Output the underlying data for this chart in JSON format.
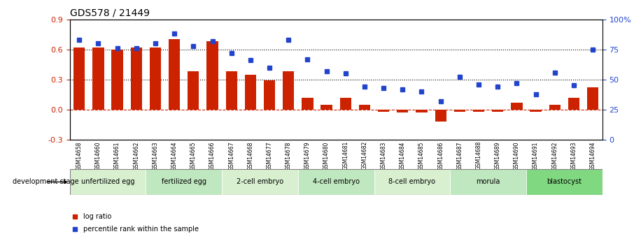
{
  "title": "GDS578 / 21449",
  "samples": [
    "GSM14658",
    "GSM14660",
    "GSM14661",
    "GSM14662",
    "GSM14663",
    "GSM14664",
    "GSM14665",
    "GSM14666",
    "GSM14667",
    "GSM14668",
    "GSM14677",
    "GSM14678",
    "GSM14679",
    "GSM14680",
    "GSM14681",
    "GSM14682",
    "GSM14683",
    "GSM14684",
    "GSM14685",
    "GSM14686",
    "GSM14687",
    "GSM14688",
    "GSM14689",
    "GSM14690",
    "GSM14691",
    "GSM14692",
    "GSM14693",
    "GSM14694"
  ],
  "log_ratio": [
    0.62,
    0.62,
    0.6,
    0.62,
    0.62,
    0.7,
    0.38,
    0.68,
    0.38,
    0.35,
    0.29,
    0.38,
    0.12,
    0.05,
    0.12,
    0.05,
    -0.02,
    -0.03,
    -0.03,
    -0.12,
    -0.02,
    -0.02,
    -0.02,
    0.07,
    -0.02,
    0.05,
    0.12,
    0.22
  ],
  "percentile_rank": [
    83,
    80,
    76,
    76,
    80,
    88,
    78,
    82,
    72,
    66,
    60,
    83,
    67,
    57,
    55,
    44,
    43,
    42,
    40,
    32,
    52,
    46,
    44,
    47,
    38,
    56,
    45,
    75
  ],
  "stages": [
    {
      "label": "unfertilized egg",
      "start": 0,
      "end": 4,
      "color": "#d0f0d0"
    },
    {
      "label": "fertilized egg",
      "start": 4,
      "end": 8,
      "color": "#b0e8b0"
    },
    {
      "label": "2-cell embryo",
      "start": 8,
      "end": 12,
      "color": "#d0f0d0"
    },
    {
      "label": "4-cell embryo",
      "start": 12,
      "end": 16,
      "color": "#b0e8b0"
    },
    {
      "label": "8-cell embryo",
      "start": 16,
      "end": 20,
      "color": "#d0f0d0"
    },
    {
      "label": "morula",
      "start": 20,
      "end": 24,
      "color": "#b0e8b0"
    },
    {
      "label": "blastocyst",
      "start": 24,
      "end": 28,
      "color": "#90e090"
    }
  ],
  "bar_color": "#cc2200",
  "dot_color": "#2244cc",
  "ylim_left": [
    -0.3,
    0.9
  ],
  "ylim_right": [
    0,
    100
  ],
  "yticks_left": [
    -0.3,
    0.0,
    0.3,
    0.6,
    0.9
  ],
  "yticks_right": [
    0,
    25,
    50,
    75,
    100
  ],
  "hlines": [
    0.3,
    0.6
  ],
  "zero_line": 0.0,
  "xlabel": "development stage",
  "legend_items": [
    {
      "label": "log ratio",
      "color": "#cc2200",
      "marker": "s"
    },
    {
      "label": "percentile rank within the sample",
      "color": "#2244cc",
      "marker": "s"
    }
  ]
}
